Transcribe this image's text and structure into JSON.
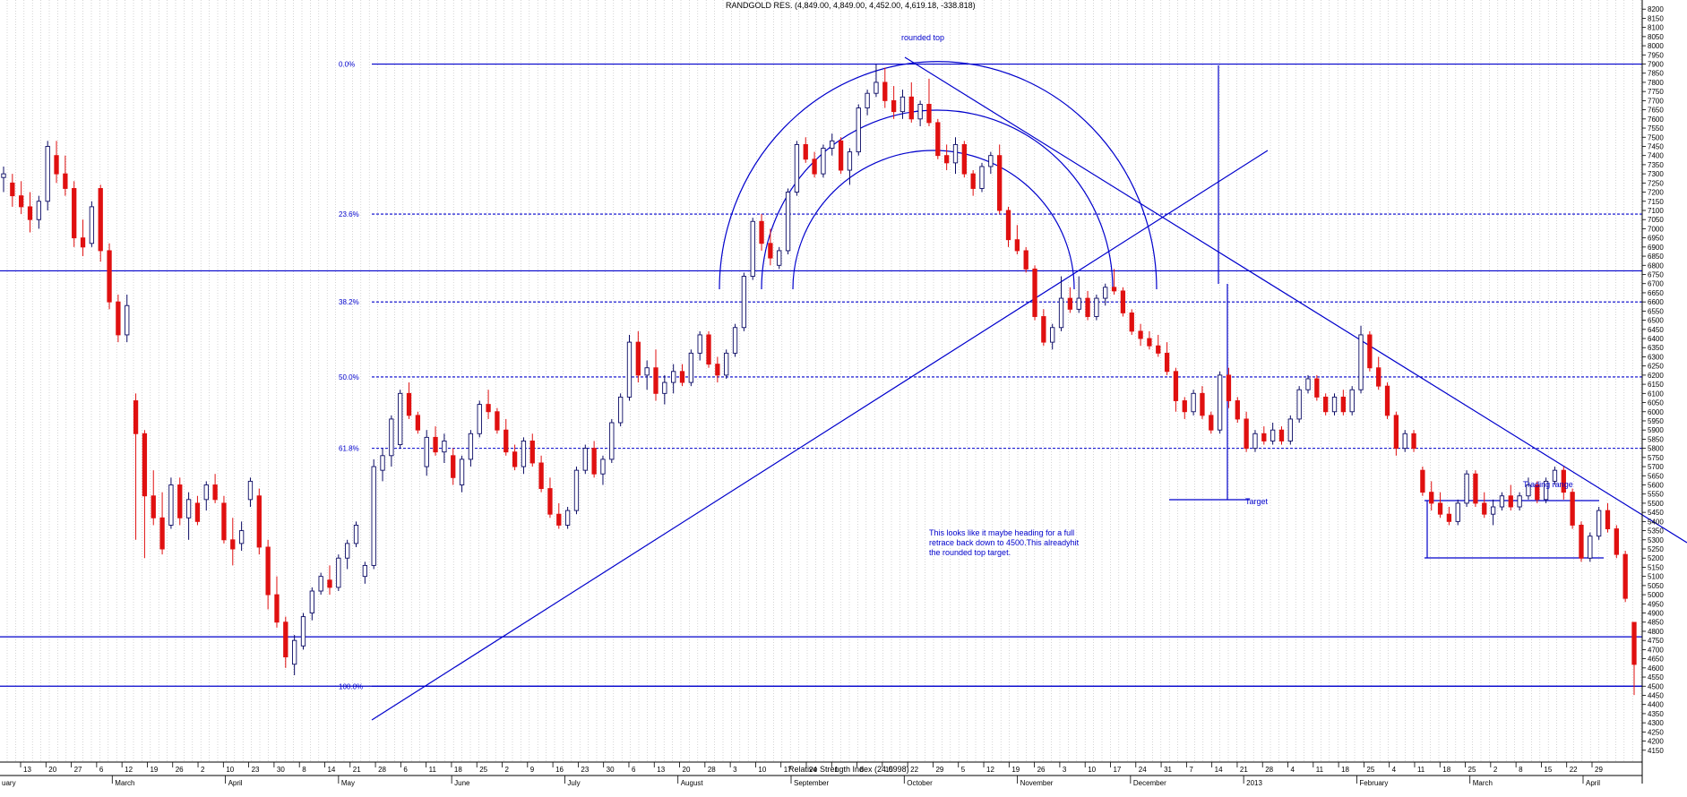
{
  "chart_data": {
    "type": "candlestick",
    "title": "RANDGOLD RES. (4,849.00, 4,849.00, 4,452.00, 4,619.18, -338.818)",
    "footer": "Relative Strength Index (24.0998)",
    "ylim": [
      4100,
      8250
    ],
    "y_ticks": [
      4150,
      4200,
      4250,
      4300,
      4350,
      4400,
      4450,
      4500,
      4550,
      4600,
      4650,
      4700,
      4750,
      4800,
      4850,
      4900,
      4950,
      5000,
      5050,
      5100,
      5150,
      5200,
      5250,
      5300,
      5350,
      5400,
      5450,
      5500,
      5550,
      5600,
      5650,
      5700,
      5750,
      5800,
      5850,
      5900,
      5950,
      6000,
      6050,
      6100,
      6150,
      6200,
      6250,
      6300,
      6350,
      6400,
      6450,
      6500,
      6550,
      6600,
      6650,
      6700,
      6750,
      6800,
      6850,
      6900,
      6950,
      7000,
      7050,
      7100,
      7150,
      7200,
      7250,
      7300,
      7350,
      7400,
      7450,
      7500,
      7550,
      7600,
      7650,
      7700,
      7750,
      7800,
      7850,
      7900,
      7950,
      8000,
      8050,
      8100,
      8150,
      8200
    ],
    "x_day_labels": [
      "13",
      "20",
      "27",
      "6",
      "12",
      "19",
      "26",
      "2",
      "10",
      "23",
      "30",
      "8",
      "14",
      "21",
      "28",
      "6",
      "11",
      "18",
      "25",
      "2",
      "9",
      "16",
      "23",
      "30",
      "6",
      "13",
      "20",
      "28",
      "3",
      "10",
      "17",
      "24",
      "1",
      "8",
      "15",
      "22",
      "29",
      "5",
      "12",
      "19",
      "26",
      "3",
      "10",
      "17",
      "24",
      "31",
      "7",
      "14",
      "21",
      "28",
      "4",
      "11",
      "18",
      "25",
      "4",
      "11",
      "18",
      "25",
      "2",
      "8",
      "15",
      "22",
      "29"
    ],
    "x_month_labels": [
      "uary",
      "March",
      "April",
      "May",
      "June",
      "July",
      "August",
      "September",
      "October",
      "November",
      "December",
      "2013",
      "February",
      "March",
      "April"
    ],
    "fib_levels": [
      {
        "label": "0.0%",
        "value": 7900
      },
      {
        "label": "23.6%",
        "value": 7080
      },
      {
        "label": "38.2%",
        "value": 6600
      },
      {
        "label": "50.0%",
        "value": 6190
      },
      {
        "label": "61.8%",
        "value": 5800
      },
      {
        "label": "100.0%",
        "value": 4500
      }
    ],
    "horizontal_lines": [
      6770,
      4770,
      4500
    ],
    "annotations": [
      {
        "text": "rounded top"
      },
      {
        "text": "Target"
      },
      {
        "text": "Trading range"
      },
      {
        "text": "This looks like it maybe heading for a full retrace back down to 4500.This alreadyhit the rounded top target."
      }
    ],
    "colors": {
      "up": "#0a0a64",
      "down": "#e01010",
      "lines": "#0000cc",
      "axis": "#000000"
    },
    "grid": "vertical dotted",
    "candles": [
      [
        7280,
        7340,
        7200,
        7300
      ],
      [
        7250,
        7300,
        7120,
        7180
      ],
      [
        7180,
        7260,
        7080,
        7120
      ],
      [
        7120,
        7200,
        6980,
        7050
      ],
      [
        7050,
        7180,
        7000,
        7150
      ],
      [
        7150,
        7480,
        7100,
        7450
      ],
      [
        7400,
        7480,
        7250,
        7300
      ],
      [
        7300,
        7400,
        7180,
        7220
      ],
      [
        7220,
        7260,
        6900,
        6950
      ],
      [
        6950,
        7050,
        6850,
        6900
      ],
      [
        6920,
        7150,
        6900,
        7120
      ],
      [
        7220,
        7240,
        6820,
        6880
      ],
      [
        6880,
        6920,
        6560,
        6600
      ],
      [
        6600,
        6640,
        6380,
        6420
      ],
      [
        6420,
        6640,
        6380,
        6580
      ],
      [
        6060,
        6100,
        5300,
        5880
      ],
      [
        5880,
        5900,
        5200,
        5540
      ],
      [
        5540,
        5680,
        5380,
        5420
      ],
      [
        5420,
        5560,
        5220,
        5250
      ],
      [
        5380,
        5640,
        5360,
        5600
      ],
      [
        5600,
        5640,
        5380,
        5420
      ],
      [
        5420,
        5560,
        5300,
        5520
      ],
      [
        5500,
        5540,
        5380,
        5400
      ],
      [
        5520,
        5620,
        5460,
        5600
      ],
      [
        5600,
        5660,
        5500,
        5520
      ],
      [
        5500,
        5540,
        5280,
        5300
      ],
      [
        5300,
        5420,
        5160,
        5250
      ],
      [
        5280,
        5400,
        5240,
        5350
      ],
      [
        5520,
        5640,
        5480,
        5620
      ],
      [
        5540,
        5580,
        5220,
        5260
      ],
      [
        5260,
        5300,
        4920,
        5000
      ],
      [
        5000,
        5100,
        4820,
        4850
      ],
      [
        4850,
        4880,
        4600,
        4660
      ],
      [
        4620,
        4780,
        4560,
        4750
      ],
      [
        4720,
        4900,
        4700,
        4880
      ],
      [
        4900,
        5040,
        4860,
        5020
      ],
      [
        5020,
        5120,
        5000,
        5100
      ],
      [
        5080,
        5160,
        5000,
        5040
      ],
      [
        5040,
        5220,
        5020,
        5200
      ],
      [
        5200,
        5300,
        5140,
        5280
      ],
      [
        5280,
        5400,
        5260,
        5380
      ],
      [
        5100,
        5180,
        5060,
        5160
      ],
      [
        5160,
        5740,
        5140,
        5700
      ],
      [
        5680,
        5800,
        5620,
        5760
      ],
      [
        5760,
        5980,
        5700,
        5960
      ],
      [
        5820,
        6120,
        5800,
        6100
      ],
      [
        6100,
        6160,
        5960,
        5980
      ],
      [
        5980,
        6000,
        5880,
        5900
      ],
      [
        5700,
        5900,
        5650,
        5860
      ],
      [
        5860,
        5920,
        5760,
        5780
      ],
      [
        5780,
        5880,
        5720,
        5840
      ],
      [
        5760,
        5800,
        5600,
        5640
      ],
      [
        5600,
        5760,
        5560,
        5740
      ],
      [
        5740,
        5900,
        5700,
        5880
      ],
      [
        5880,
        6060,
        5860,
        6040
      ],
      [
        6040,
        6120,
        5960,
        6000
      ],
      [
        6000,
        6020,
        5880,
        5900
      ],
      [
        5900,
        5960,
        5760,
        5780
      ],
      [
        5780,
        5820,
        5680,
        5700
      ],
      [
        5700,
        5860,
        5660,
        5840
      ],
      [
        5840,
        5880,
        5700,
        5720
      ],
      [
        5720,
        5760,
        5560,
        5580
      ],
      [
        5580,
        5640,
        5420,
        5440
      ],
      [
        5440,
        5500,
        5360,
        5380
      ],
      [
        5380,
        5480,
        5360,
        5460
      ],
      [
        5460,
        5700,
        5440,
        5680
      ],
      [
        5680,
        5820,
        5660,
        5800
      ],
      [
        5800,
        5840,
        5640,
        5660
      ],
      [
        5660,
        5760,
        5600,
        5740
      ],
      [
        5740,
        5960,
        5720,
        5940
      ],
      [
        5940,
        6100,
        5920,
        6080
      ],
      [
        6080,
        6420,
        6060,
        6380
      ],
      [
        6380,
        6440,
        6160,
        6200
      ],
      [
        6200,
        6280,
        6120,
        6240
      ],
      [
        6240,
        6340,
        6060,
        6100
      ],
      [
        6100,
        6200,
        6040,
        6160
      ],
      [
        6160,
        6260,
        6100,
        6220
      ],
      [
        6220,
        6260,
        6140,
        6160
      ],
      [
        6160,
        6340,
        6140,
        6320
      ],
      [
        6320,
        6440,
        6280,
        6420
      ],
      [
        6420,
        6440,
        6240,
        6260
      ],
      [
        6260,
        6300,
        6160,
        6200
      ],
      [
        6200,
        6340,
        6180,
        6320
      ],
      [
        6320,
        6480,
        6300,
        6460
      ],
      [
        6460,
        6760,
        6440,
        6740
      ],
      [
        6740,
        7060,
        6720,
        7040
      ],
      [
        7040,
        7080,
        6880,
        6920
      ],
      [
        6920,
        7000,
        6800,
        6840
      ],
      [
        6800,
        6900,
        6780,
        6880
      ],
      [
        6880,
        7220,
        6860,
        7200
      ],
      [
        7200,
        7480,
        7180,
        7460
      ],
      [
        7460,
        7500,
        7360,
        7380
      ],
      [
        7380,
        7420,
        7280,
        7300
      ],
      [
        7300,
        7460,
        7280,
        7440
      ],
      [
        7440,
        7520,
        7400,
        7480
      ],
      [
        7480,
        7500,
        7300,
        7320
      ],
      [
        7320,
        7440,
        7240,
        7420
      ],
      [
        7420,
        7680,
        7400,
        7660
      ],
      [
        7660,
        7760,
        7620,
        7740
      ],
      [
        7740,
        7900,
        7720,
        7800
      ],
      [
        7800,
        7880,
        7660,
        7700
      ],
      [
        7700,
        7780,
        7600,
        7640
      ],
      [
        7640,
        7760,
        7600,
        7720
      ],
      [
        7720,
        7800,
        7580,
        7600
      ],
      [
        7600,
        7700,
        7560,
        7680
      ],
      [
        7680,
        7820,
        7560,
        7580
      ],
      [
        7580,
        7600,
        7380,
        7400
      ],
      [
        7400,
        7460,
        7320,
        7360
      ],
      [
        7360,
        7500,
        7300,
        7460
      ],
      [
        7460,
        7480,
        7280,
        7300
      ],
      [
        7300,
        7320,
        7180,
        7220
      ],
      [
        7220,
        7360,
        7200,
        7340
      ],
      [
        7340,
        7420,
        7300,
        7400
      ],
      [
        7400,
        7460,
        7080,
        7100
      ],
      [
        7100,
        7120,
        6900,
        6940
      ],
      [
        6940,
        7020,
        6860,
        6880
      ],
      [
        6880,
        6900,
        6760,
        6780
      ],
      [
        6780,
        6800,
        6500,
        6520
      ],
      [
        6520,
        6560,
        6360,
        6380
      ],
      [
        6380,
        6480,
        6340,
        6460
      ],
      [
        6460,
        6740,
        6440,
        6620
      ],
      [
        6620,
        6680,
        6540,
        6560
      ],
      [
        6560,
        6740,
        6540,
        6620
      ],
      [
        6620,
        6660,
        6500,
        6520
      ],
      [
        6520,
        6640,
        6500,
        6620
      ],
      [
        6620,
        6700,
        6580,
        6680
      ],
      [
        6680,
        6780,
        6640,
        6660
      ],
      [
        6660,
        6680,
        6520,
        6540
      ],
      [
        6540,
        6560,
        6420,
        6440
      ],
      [
        6440,
        6480,
        6360,
        6400
      ],
      [
        6400,
        6440,
        6340,
        6360
      ],
      [
        6360,
        6420,
        6300,
        6320
      ],
      [
        6320,
        6380,
        6200,
        6220
      ],
      [
        6220,
        6240,
        6000,
        6060
      ],
      [
        6060,
        6080,
        5960,
        6000
      ],
      [
        6000,
        6120,
        5980,
        6100
      ],
      [
        6100,
        6140,
        5960,
        5980
      ],
      [
        5980,
        6000,
        5880,
        5900
      ],
      [
        5900,
        6220,
        5880,
        6200
      ],
      [
        6200,
        6240,
        6020,
        6060
      ],
      [
        6060,
        6080,
        5940,
        5960
      ],
      [
        5960,
        6000,
        5780,
        5800
      ],
      [
        5800,
        5900,
        5780,
        5880
      ],
      [
        5880,
        5920,
        5820,
        5840
      ],
      [
        5840,
        5940,
        5820,
        5900
      ],
      [
        5900,
        5920,
        5820,
        5840
      ],
      [
        5840,
        5980,
        5820,
        5960
      ],
      [
        5960,
        6140,
        5940,
        6120
      ],
      [
        6120,
        6200,
        6100,
        6180
      ],
      [
        6180,
        6200,
        6060,
        6080
      ],
      [
        6080,
        6100,
        5980,
        6000
      ],
      [
        6000,
        6100,
        5980,
        6080
      ],
      [
        6080,
        6120,
        5980,
        6000
      ],
      [
        6000,
        6140,
        5980,
        6120
      ],
      [
        6120,
        6470,
        6100,
        6420
      ],
      [
        6420,
        6440,
        6220,
        6240
      ],
      [
        6240,
        6300,
        6120,
        6140
      ],
      [
        6140,
        6160,
        5960,
        5980
      ],
      [
        5980,
        6000,
        5760,
        5800
      ],
      [
        5800,
        5900,
        5780,
        5880
      ],
      [
        5880,
        5900,
        5780,
        5800
      ],
      [
        5680,
        5700,
        5540,
        5560
      ],
      [
        5560,
        5620,
        5460,
        5500
      ],
      [
        5500,
        5560,
        5420,
        5440
      ],
      [
        5440,
        5480,
        5380,
        5400
      ],
      [
        5400,
        5520,
        5380,
        5500
      ],
      [
        5500,
        5680,
        5480,
        5660
      ],
      [
        5660,
        5680,
        5480,
        5500
      ],
      [
        5500,
        5560,
        5420,
        5440
      ],
      [
        5440,
        5520,
        5380,
        5480
      ],
      [
        5480,
        5560,
        5460,
        5540
      ],
      [
        5540,
        5600,
        5460,
        5480
      ],
      [
        5480,
        5560,
        5460,
        5540
      ],
      [
        5540,
        5640,
        5520,
        5600
      ],
      [
        5600,
        5620,
        5500,
        5520
      ],
      [
        5520,
        5640,
        5500,
        5620
      ],
      [
        5620,
        5700,
        5600,
        5680
      ],
      [
        5680,
        5700,
        5520,
        5560
      ],
      [
        5560,
        5580,
        5360,
        5380
      ],
      [
        5380,
        5400,
        5180,
        5200
      ],
      [
        5200,
        5340,
        5180,
        5320
      ],
      [
        5320,
        5480,
        5300,
        5460
      ],
      [
        5460,
        5500,
        5340,
        5360
      ],
      [
        5360,
        5380,
        5200,
        5220
      ],
      [
        5220,
        5240,
        4960,
        4980
      ],
      [
        4849,
        4849,
        4452,
        4619
      ]
    ]
  }
}
